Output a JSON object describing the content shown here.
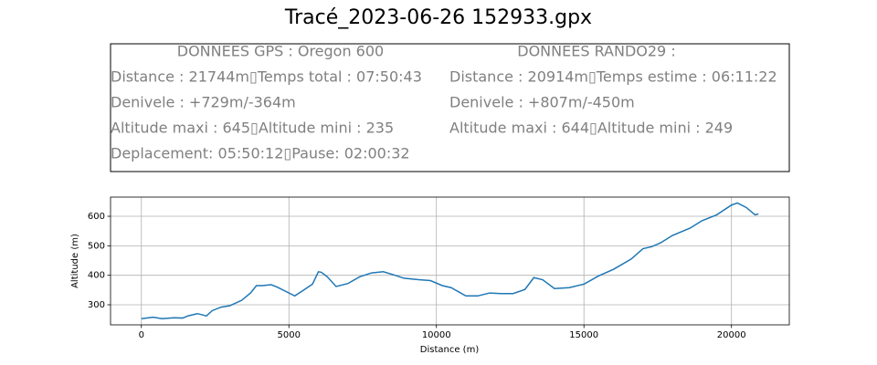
{
  "chart_data": {
    "type": "line",
    "title": "Tracé_2023-06-26 152933.gpx",
    "annotations": [
      [
        "DONNEES GPS :  Oregon 600",
        "Distance : 21744m▯Temps total : 07:50:43",
        "Denivele : +729m/-364m",
        "Altitude maxi : 645▯Altitude mini : 235",
        "Deplacement: 05:50:12▯Pause: 02:00:32"
      ],
      [
        "DONNEES RANDO29  :",
        "Distance : 20914m▯Temps estime : 06:11:22",
        "Denivele : +807m/-450m",
        "Altitude maxi : 644▯Altitude mini : 249"
      ]
    ],
    "x_label": "Distance (m)",
    "y_label": "Altitude (m)",
    "x": [
      0,
      400,
      700,
      1100,
      1400,
      1600,
      1900,
      2100,
      2200,
      2400,
      2700,
      3000,
      3400,
      3700,
      3900,
      4100,
      4400,
      4600,
      5200,
      5500,
      5800,
      6000,
      6100,
      6300,
      6600,
      7000,
      7400,
      7800,
      8200,
      8600,
      8900,
      9400,
      9800,
      10200,
      10500,
      11000,
      11400,
      11800,
      12200,
      12600,
      13000,
      13300,
      13600,
      14000,
      14500,
      15000,
      15500,
      16000,
      16600,
      17000,
      17300,
      17600,
      18000,
      18600,
      19000,
      19500,
      20000,
      20200,
      20500,
      20800,
      20914
    ],
    "values": [
      253,
      258,
      253,
      256,
      255,
      263,
      270,
      265,
      262,
      280,
      292,
      297,
      315,
      340,
      365,
      365,
      368,
      360,
      330,
      350,
      370,
      412,
      410,
      395,
      362,
      372,
      395,
      408,
      412,
      400,
      390,
      385,
      382,
      365,
      358,
      330,
      330,
      340,
      338,
      338,
      352,
      392,
      385,
      355,
      358,
      370,
      398,
      420,
      455,
      490,
      497,
      510,
      535,
      560,
      585,
      605,
      638,
      645,
      630,
      605,
      608
    ],
    "color": "#1f77b4",
    "xlim": [
      -1045,
      21960
    ],
    "ylim": [
      232,
      665
    ],
    "xticks": [
      0,
      5000,
      10000,
      15000,
      20000
    ],
    "yticks": [
      300,
      400,
      500,
      600
    ],
    "grid": true
  }
}
